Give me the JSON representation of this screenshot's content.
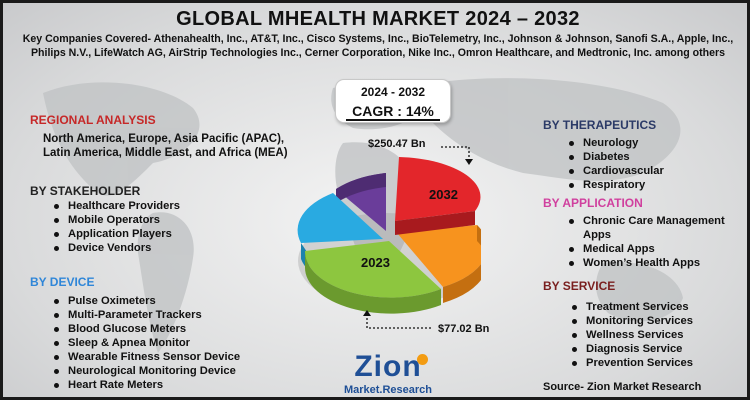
{
  "title": "GLOBAL MHEALTH MARKET 2024 – 2032",
  "companies": "Key Companies Covered- Athenahealth, Inc., AT&T, Inc., Cisco Systems, Inc., BioTelemetry, Inc., Johnson & Johnson, Sanofi S.A., Apple, Inc., Philips N.V., LifeWatch AG, AirStrip Technologies Inc., Cerner Corporation, Nike Inc., Omron Healthcare, and Medtronic, Inc. among others",
  "cagr": {
    "range": "2024 - 2032",
    "value": "CAGR : 14%"
  },
  "regional": {
    "title": "REGIONAL ANALYSIS",
    "text": "North America, Europe, Asia Pacific (APAC), Latin America, Middle East, and Africa (MEA)"
  },
  "stakeholder": {
    "title": "BY STAKEHOLDER",
    "items": [
      "Healthcare Providers",
      "Mobile Operators",
      "Application Players",
      "Device Vendors"
    ]
  },
  "device": {
    "title": "BY DEVICE",
    "items": [
      "Pulse Oximeters",
      "Multi-Parameter Trackers",
      "Blood Glucose Meters",
      "Sleep & Apnea Monitor",
      "Wearable Fitness Sensor Device",
      "Neurological Monitoring Device",
      "Heart Rate Meters"
    ]
  },
  "therapeutics": {
    "title": "BY THERAPEUTICS",
    "items": [
      "Neurology",
      "Diabetes",
      "Cardiovascular",
      "Respiratory"
    ]
  },
  "application": {
    "title": "BY APPLICATION",
    "items": [
      "Chronic Care Management Apps",
      "Medical Apps",
      "Women’s Health Apps"
    ]
  },
  "service": {
    "title": "BY SERVICE",
    "items": [
      "Treatment Services",
      "Monitoring Services",
      "Wellness Services",
      "Diagnosis Service",
      "Prevention Services"
    ]
  },
  "pie": {
    "label_2032": "2032",
    "label_2023": "2023",
    "value_2032": "$250.47 Bn",
    "value_2023": "$77.02 Bn",
    "colors": {
      "red": "#e3262b",
      "orange": "#f7931e",
      "green": "#8dc63f",
      "blue": "#29aae1",
      "purple": "#6a3d9a"
    }
  },
  "logo": {
    "word": "Zion",
    "sub": "Market.Research"
  },
  "source": "Source- Zion Market Research"
}
